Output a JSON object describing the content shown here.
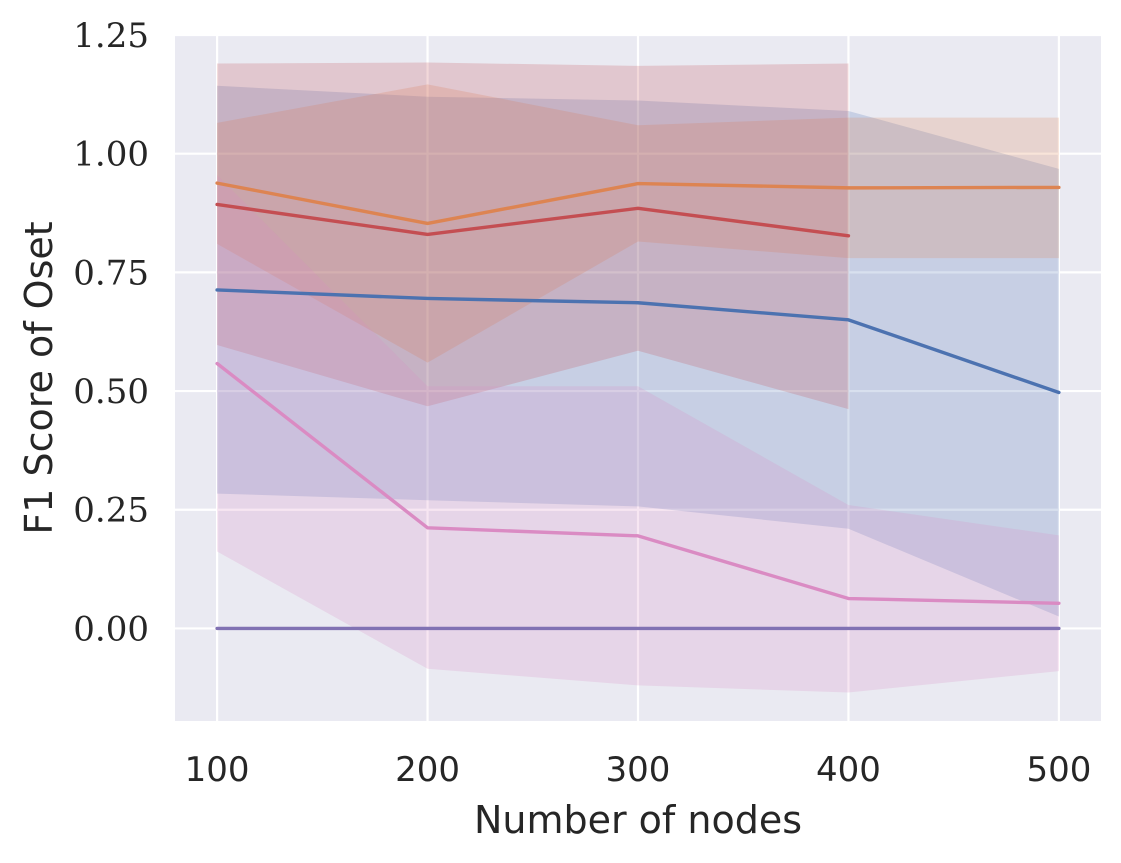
{
  "chart_data": {
    "type": "line",
    "title": "",
    "xlabel": "Number of nodes",
    "ylabel": "F1 Score of Oset",
    "xlim": [
      80,
      520
    ],
    "ylim": [
      -0.195,
      1.25
    ],
    "x_ticks": [
      100,
      200,
      300,
      400,
      500
    ],
    "x_tick_labels": [
      "100",
      "200",
      "300",
      "400",
      "500"
    ],
    "y_ticks": [
      0.0,
      0.25,
      0.5,
      0.75,
      1.0,
      1.25
    ],
    "y_tick_labels": [
      "0.00",
      "0.25",
      "0.50",
      "0.75",
      "1.00",
      "1.25"
    ],
    "grid": true,
    "legend": "none",
    "background_color": "#eaeaf2",
    "series": [
      {
        "color": "#4c72b0",
        "x": [
          100,
          200,
          300,
          400,
          500
        ],
        "values": [
          0.713,
          0.695,
          0.686,
          0.65,
          0.497
        ],
        "band_lower": [
          0.284,
          0.27,
          0.257,
          0.21,
          0.025
        ],
        "band_upper": [
          1.143,
          1.12,
          1.112,
          1.09,
          0.968
        ]
      },
      {
        "color": "#dd8452",
        "x": [
          100,
          200,
          300,
          400,
          500
        ],
        "values": [
          0.938,
          0.853,
          0.937,
          0.928,
          0.929
        ],
        "band_lower": [
          0.81,
          0.56,
          0.815,
          0.78,
          0.78
        ],
        "band_upper": [
          1.065,
          1.146,
          1.06,
          1.076,
          1.076
        ]
      },
      {
        "color": "#c44e52",
        "x": [
          100,
          200,
          300,
          400
        ],
        "values": [
          0.893,
          0.83,
          0.885,
          0.827
        ],
        "band_lower": [
          0.597,
          0.468,
          0.585,
          0.462
        ],
        "band_upper": [
          1.19,
          1.192,
          1.185,
          1.19
        ]
      },
      {
        "color": "#8172b3",
        "x": [
          100,
          200,
          300,
          400,
          500
        ],
        "values": [
          0.0,
          0.0,
          0.0,
          0.0,
          0.0
        ]
      },
      {
        "color": "#da8bc3",
        "x": [
          100,
          200,
          300,
          400,
          500
        ],
        "values": [
          0.558,
          0.212,
          0.195,
          0.063,
          0.053
        ],
        "band_lower": [
          0.162,
          -0.085,
          -0.12,
          -0.135,
          -0.09
        ],
        "band_upper": [
          0.955,
          0.51,
          0.51,
          0.26,
          0.196
        ]
      }
    ]
  }
}
